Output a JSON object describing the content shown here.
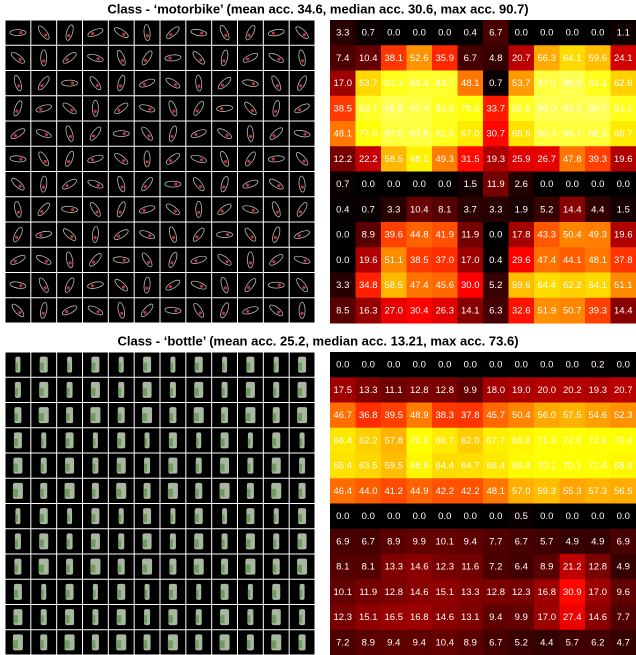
{
  "panels": [
    {
      "title": "Class - ‘motorbike’ (mean acc. 34.6, median acc. 30.6,  max acc. 90.7)",
      "heatmap": [
        [
          "3.3",
          "0.7",
          "0.0",
          "0.0",
          "0.0",
          "0.4",
          "6.7",
          "0.0",
          "0.0",
          "0.0",
          "0.0",
          "1.1"
        ],
        [
          "7.4",
          "10.4",
          "38.1",
          "52.6",
          "35.9",
          "6.7",
          "4.8",
          "20.7",
          "56.3",
          "64.1",
          "59.6",
          "24.1"
        ],
        [
          "17.0",
          "63.7",
          "81.1",
          "84.4",
          "83.7",
          "48.1",
          "0.7",
          "53.7",
          "87.0",
          "90.0",
          "81.1",
          "62.6"
        ],
        [
          "38.5",
          "83.7",
          "89.6",
          "87.4",
          "82.6",
          "78.5",
          "33.7",
          "82.6",
          "90.0",
          "89.3",
          "90.7",
          "81.1"
        ],
        [
          "48.1",
          "77.8",
          "87.0",
          "87.8",
          "81.5",
          "67.0",
          "30.7",
          "65.6",
          "86.3",
          "86.7",
          "86.3",
          "66.7"
        ],
        [
          "12.2",
          "22.2",
          "58.5",
          "68.1",
          "49.3",
          "31.5",
          "19.3",
          "25.9",
          "26.7",
          "47.8",
          "39.3",
          "19.6"
        ],
        [
          "0.7",
          "0.0",
          "0.0",
          "0.0",
          "0.0",
          "1.5",
          "11.9",
          "2.6",
          "0.0",
          "0.0",
          "0.0",
          "0.0"
        ],
        [
          "0.4",
          "0.7",
          "3.3",
          "10.4",
          "8.1",
          "3.7",
          "3.3",
          "1.9",
          "5.2",
          "14.4",
          "4.4",
          "1.5"
        ],
        [
          "0.0",
          "8.9",
          "39.6",
          "44.8",
          "41.9",
          "11.9",
          "0.0",
          "17.8",
          "43.3",
          "50.4",
          "49.3",
          "19.6"
        ],
        [
          "0.0",
          "19.6",
          "51.1",
          "38.5",
          "37.0",
          "17.0",
          "0.4",
          "29.6",
          "47.4",
          "44.1",
          "48.1",
          "37.8"
        ],
        [
          "3.3",
          "34.8",
          "58.5",
          "47.4",
          "45.6",
          "30.0",
          "5.2",
          "59.6",
          "64.4",
          "62.2",
          "64.1",
          "51.1"
        ],
        [
          "8.5",
          "16.3",
          "27.0",
          "30.4",
          "26.3",
          "14.1",
          "6.3",
          "32.6",
          "51.9",
          "50.7",
          "39.3",
          "14.4"
        ]
      ]
    },
    {
      "title": "Class - ‘bottle’ (mean acc. 25.2, median acc. 13.21,  max acc. 73.6)",
      "heatmap": [
        [
          "0.0",
          "0.0",
          "0.0",
          "0.0",
          "0.0",
          "0.0",
          "0.0",
          "0.0",
          "0.0",
          "0.0",
          "0.2",
          "0.0"
        ],
        [
          "17.5",
          "13.3",
          "11.1",
          "12.8",
          "12.8",
          "9.9",
          "18.0",
          "19.0",
          "20.0",
          "20.2",
          "19.3",
          "20.7"
        ],
        [
          "46.7",
          "36.8",
          "39.5",
          "48.9",
          "38.3",
          "37.8",
          "45.7",
          "50.4",
          "56.0",
          "57.5",
          "54.6",
          "52.3"
        ],
        [
          "66.4",
          "62.2",
          "57.8",
          "70.9",
          "66.7",
          "62.0",
          "67.7",
          "68.6",
          "71.9",
          "72.8",
          "73.6",
          "70.4"
        ],
        [
          "65.4",
          "63.5",
          "59.5",
          "68.9",
          "64.4",
          "64.7",
          "66.4",
          "69.4",
          "70.1",
          "70.1",
          "71.4",
          "68.9"
        ],
        [
          "46.4",
          "44.0",
          "41.2",
          "44.9",
          "42.2",
          "42.2",
          "48.1",
          "57.0",
          "59.3",
          "55.3",
          "57.3",
          "56.5"
        ],
        [
          "0.0",
          "0.0",
          "0.0",
          "0.0",
          "0.0",
          "0.0",
          "0.0",
          "0.5",
          "0.0",
          "0.0",
          "0.0",
          "0.0"
        ],
        [
          "6.9",
          "6.7",
          "8.9",
          "9.9",
          "10.1",
          "9.4",
          "7.7",
          "6.7",
          "5.7",
          "4.9",
          "4.9",
          "6.9"
        ],
        [
          "8.1",
          "8.1",
          "13.3",
          "14.6",
          "12.3",
          "11.6",
          "7.2",
          "6.4",
          "8.9",
          "21.2",
          "12.8",
          "4.9"
        ],
        [
          "10.1",
          "11.9",
          "12.8",
          "14.6",
          "15.1",
          "13.3",
          "12.8",
          "12.3",
          "16.8",
          "30.9",
          "17.0",
          "9.6"
        ],
        [
          "12.3",
          "15.1",
          "16.5",
          "16.8",
          "14.6",
          "13.1",
          "9.4",
          "9.9",
          "17.0",
          "27.4",
          "14.6",
          "7.7"
        ],
        [
          "7.2",
          "8.9",
          "9.4",
          "9.4",
          "10.4",
          "8.9",
          "6.7",
          "5.2",
          "4.4",
          "5.7",
          "6.2",
          "4.7"
        ]
      ]
    }
  ]
}
